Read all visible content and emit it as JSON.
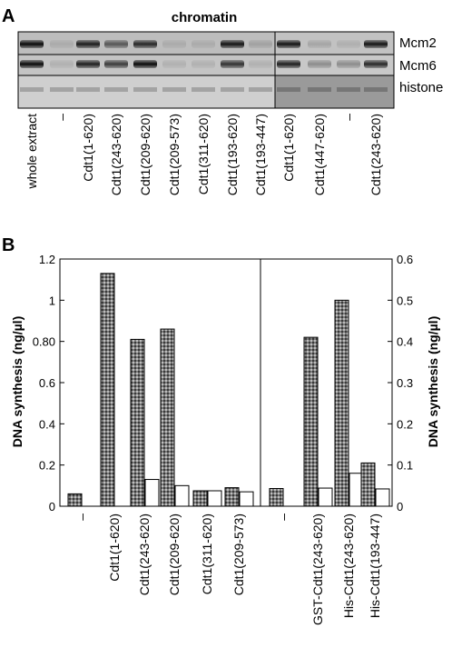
{
  "panel_a": {
    "panel_label": "A",
    "title": "chromatin",
    "row_labels": [
      "Mcm2",
      "Mcm6",
      "histone"
    ],
    "lanes_left": [
      "whole extract",
      "–",
      "Cdt1(1-620)",
      "Cdt1(243-620)",
      "Cdt1(209-620)",
      "Cdt1(209-573)",
      "Cdt1(311-620)",
      "Cdt1(193-620)",
      "Cdt1(193-447)"
    ],
    "lanes_right": [
      "Cdt1(1-620)",
      "Cdt1(447-620)",
      "–",
      "Cdt1(243-620)"
    ],
    "band_intensity": {
      "mcm2_left": [
        0.95,
        0.1,
        0.85,
        0.55,
        0.8,
        0.1,
        0.1,
        0.9,
        0.15
      ],
      "mcm6_left": [
        0.95,
        0.1,
        0.85,
        0.7,
        0.95,
        0.1,
        0.1,
        0.75,
        0.1
      ],
      "mcm2_right": [
        0.9,
        0.15,
        0.1,
        0.9
      ],
      "mcm6_right": [
        0.85,
        0.3,
        0.3,
        0.8
      ]
    }
  },
  "panel_b": {
    "panel_label": "B",
    "chart_data": {
      "type": "bar",
      "ylabel_left": "DNA synthesis (ng/µl)",
      "ylabel_right": "DNA synthesis (ng/µl)",
      "left_axis": {
        "ylim": [
          0,
          1.2
        ],
        "ticks": [
          "0",
          "0.2",
          "0.4",
          "0.6",
          "0.80",
          "1",
          "1.2"
        ]
      },
      "right_axis": {
        "ylim": [
          0,
          0.6
        ],
        "ticks": [
          "0",
          "0.1",
          "0.2",
          "0.3",
          "0.4",
          "0.5",
          "0.6"
        ]
      },
      "left_group": {
        "categories": [
          "–",
          "Cdt1(1-620)",
          "Cdt1(243-620)",
          "Cdt1(209-620)",
          "Cdt1(311-620)",
          "Cdt1(209-573)"
        ],
        "series": [
          {
            "values": [
              0.06,
              1.13,
              0.81,
              0.86,
              0.075,
              0.09
            ]
          },
          {
            "values": [
              null,
              null,
              0.13,
              0.1,
              0.075,
              0.07
            ]
          }
        ]
      },
      "right_group": {
        "categories": [
          "–",
          "GST-Cdt1(243-620)",
          "His-Cdt1(243-620)",
          "His-Cdt1(193-447)"
        ],
        "series": [
          {
            "values": [
              0.043,
              0.41,
              0.5,
              0.105
            ]
          },
          {
            "values": [
              null,
              0.044,
              0.08,
              0.042
            ]
          }
        ]
      }
    }
  }
}
